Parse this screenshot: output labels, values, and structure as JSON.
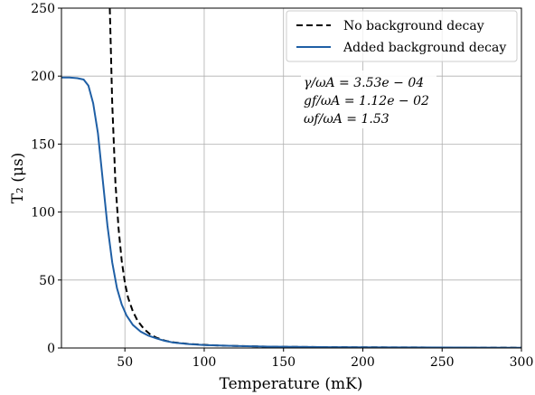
{
  "chart_data": {
    "type": "line",
    "title": "",
    "xlabel": "Temperature (mK)",
    "ylabel": "T₂ (μs)",
    "xlim": [
      10,
      300
    ],
    "ylim": [
      0,
      250
    ],
    "xticks": [
      50,
      100,
      150,
      200,
      250,
      300
    ],
    "yticks": [
      0,
      50,
      100,
      150,
      200,
      250
    ],
    "grid": true,
    "legend_position": "top-right",
    "annotations": [
      "γ/ωA = 3.53e − 04",
      "gf/ωA = 1.12e − 02",
      "ωf/ωA = 1.53"
    ],
    "series": [
      {
        "name": "No background decay",
        "style": "dashed",
        "color": "#000000",
        "x": [
          40,
          42,
          44,
          46,
          48,
          50,
          52,
          55,
          58,
          62,
          66,
          70,
          75,
          80,
          90,
          100,
          110,
          120,
          140,
          160,
          180,
          200,
          230,
          260,
          300
        ],
        "y": [
          272,
          180,
          122,
          88,
          64,
          48,
          37,
          27,
          20,
          14,
          10,
          7.5,
          5.5,
          4.2,
          3.0,
          2.3,
          1.8,
          1.5,
          1.0,
          0.8,
          0.6,
          0.5,
          0.4,
          0.3,
          0.2
        ]
      },
      {
        "name": "Added background decay",
        "style": "solid",
        "color": "#1f5fa5",
        "x": [
          10,
          15,
          20,
          24,
          27,
          30,
          33,
          36,
          39,
          42,
          45,
          48,
          51,
          55,
          60,
          65,
          70,
          75,
          80,
          90,
          100,
          110,
          120,
          140,
          160,
          180,
          200,
          230,
          260,
          300
        ],
        "y": [
          199,
          199,
          198.5,
          197.5,
          193,
          180,
          158,
          124,
          90,
          63,
          44,
          32,
          24,
          17,
          12,
          9,
          7,
          5.3,
          4.1,
          2.9,
          2.2,
          1.8,
          1.5,
          1.0,
          0.8,
          0.6,
          0.5,
          0.4,
          0.3,
          0.2
        ]
      }
    ]
  }
}
